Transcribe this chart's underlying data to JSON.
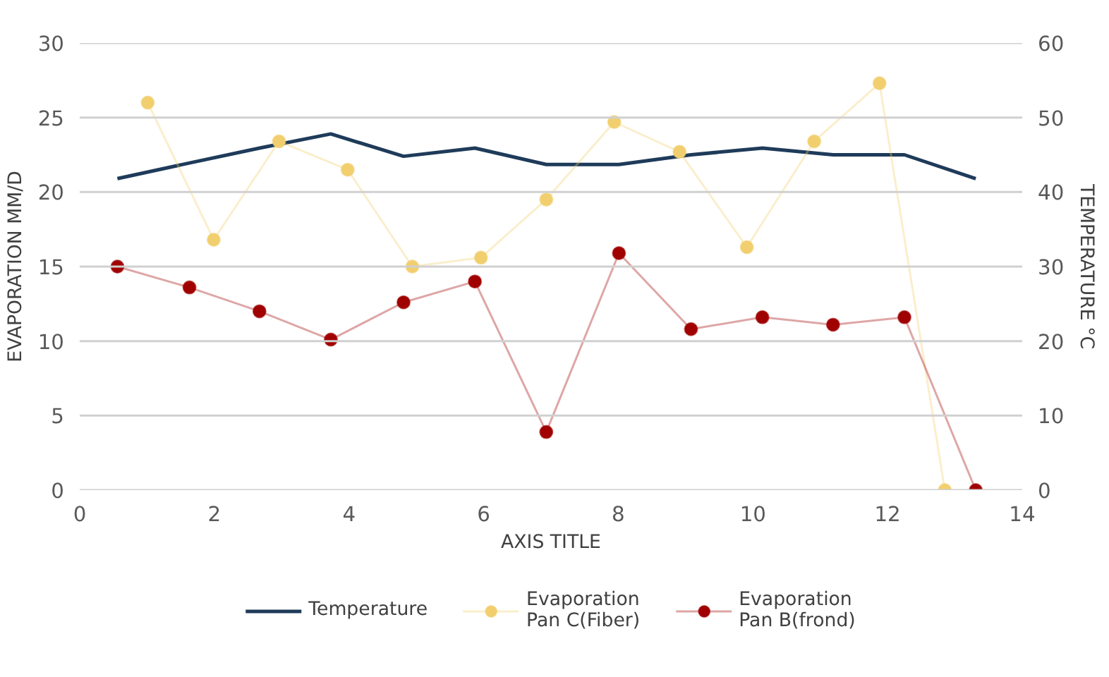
{
  "chart_data": {
    "type": "line",
    "xlabel": "AXIS TITLE",
    "ylabel": "EVAPORATION MM/D",
    "y2label": "TEMPERATURE °C",
    "xlim": [
      0,
      14
    ],
    "xticks": [
      0,
      2,
      4,
      6,
      8,
      10,
      12,
      14
    ],
    "ylim": [
      0,
      30
    ],
    "yticks": [
      0,
      5,
      10,
      15,
      20,
      25,
      30
    ],
    "y2lim": [
      0,
      60
    ],
    "y2ticks": [
      0,
      10,
      20,
      30,
      40,
      50,
      60
    ],
    "grid": "y",
    "legend": "bottom",
    "series": [
      {
        "name": "Temperature",
        "color": "#1f3b5a",
        "axis": "y2",
        "marker": "none",
        "x": [
          0.56,
          1.63,
          2.67,
          3.73,
          4.81,
          5.87,
          6.93,
          8.01,
          9.08,
          10.14,
          11.19,
          12.25,
          13.31
        ],
        "values": [
          41.8,
          43.9,
          45.9,
          47.8,
          44.8,
          45.9,
          43.7,
          43.7,
          45,
          45.9,
          45,
          45,
          41.8
        ]
      },
      {
        "name": "Evaporation Pan C(Fiber)",
        "color": "#f2cf6e",
        "marker": "circle",
        "x": [
          1.01,
          1.99,
          2.96,
          3.98,
          4.94,
          5.96,
          6.93,
          7.94,
          8.91,
          9.91,
          10.91,
          11.88,
          12.85
        ],
        "values": [
          26.0,
          16.8,
          23.4,
          21.5,
          15.0,
          15.6,
          19.5,
          24.7,
          22.7,
          16.3,
          23.4,
          27.3,
          0
        ]
      },
      {
        "name": "Evaporation Pan B(frond)",
        "color": "#a00000",
        "marker": "circle",
        "x": [
          0.56,
          1.63,
          2.67,
          3.73,
          4.81,
          5.87,
          6.93,
          8.01,
          9.08,
          10.14,
          11.19,
          12.25,
          13.31
        ],
        "values": [
          15.0,
          13.6,
          12.0,
          10.1,
          12.6,
          14.0,
          3.9,
          15.9,
          10.8,
          11.6,
          11.1,
          11.6,
          0
        ]
      }
    ]
  }
}
